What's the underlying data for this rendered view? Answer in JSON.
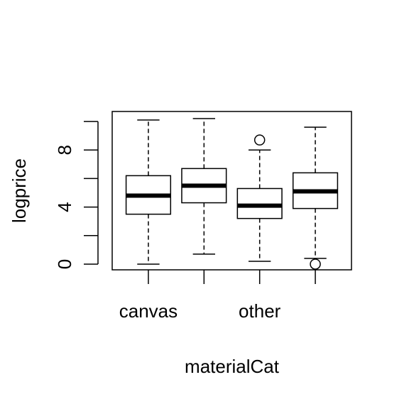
{
  "chart_data": {
    "type": "boxplot",
    "title": "",
    "xlabel": "materialCat",
    "ylabel": "logprice",
    "categories": [
      "canvas",
      "",
      "other",
      ""
    ],
    "x_tick_labels_visible": [
      "canvas",
      "other"
    ],
    "y_ticks": [
      0,
      2,
      4,
      6,
      8,
      10
    ],
    "y_tick_labels": [
      "0",
      "",
      "4",
      "",
      "8",
      ""
    ],
    "ylim": [
      -0.4,
      10.7
    ],
    "grid": false,
    "legend": "none",
    "colors": {
      "stroke": "#000000",
      "fill": "#ffffff",
      "background": "#ffffff"
    },
    "boxes": [
      {
        "category": "canvas",
        "whisker_low": 0.0,
        "q1": 3.5,
        "median": 4.8,
        "q3": 6.2,
        "whisker_high": 10.1,
        "outliers": []
      },
      {
        "category": "",
        "whisker_low": 0.7,
        "q1": 4.3,
        "median": 5.5,
        "q3": 6.7,
        "whisker_high": 10.2,
        "outliers": []
      },
      {
        "category": "other",
        "whisker_low": 0.2,
        "q1": 3.2,
        "median": 4.1,
        "q3": 5.3,
        "whisker_high": 8.0,
        "outliers": [
          8.7
        ]
      },
      {
        "category": "",
        "whisker_low": 0.4,
        "q1": 3.9,
        "median": 5.1,
        "q3": 6.4,
        "whisker_high": 9.6,
        "outliers": [
          0.0
        ]
      }
    ]
  }
}
